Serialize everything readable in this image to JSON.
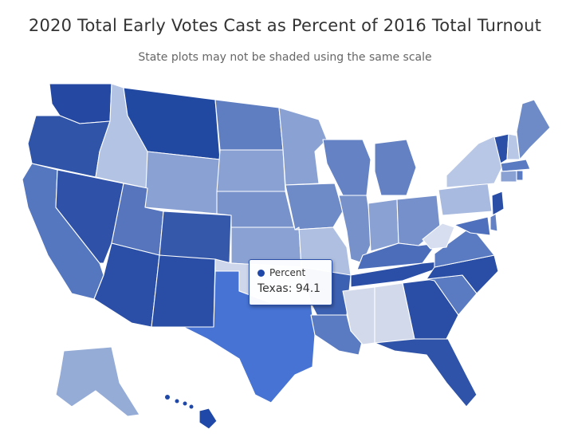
{
  "title": "2020 Total Early Votes Cast as Percent of 2016 Total Turnout",
  "subtitle": "State plots may not be shaded using the same scale",
  "tooltip": {
    "series_name": "Percent",
    "state": "Texas",
    "separator": ": ",
    "value": "94.1",
    "marker_color": "#1f48a8"
  },
  "colors": {
    "background": "#ffffff",
    "state_border": "#ffffff",
    "texas_highlight": "#4673d4"
  },
  "states": [
    {
      "id": "WA",
      "name": "Washington",
      "color": "#2549a3"
    },
    {
      "id": "OR",
      "name": "Oregon",
      "color": "#2f54a8"
    },
    {
      "id": "CA",
      "name": "California",
      "color": "#5577bf"
    },
    {
      "id": "ID",
      "name": "Idaho",
      "color": "#b3c3e3"
    },
    {
      "id": "NV",
      "name": "Nevada",
      "color": "#2f52a8"
    },
    {
      "id": "MT",
      "name": "Montana",
      "color": "#2249a1"
    },
    {
      "id": "WY",
      "name": "Wyoming",
      "color": "#8aa1d3"
    },
    {
      "id": "UT",
      "name": "Utah",
      "color": "#5675bd"
    },
    {
      "id": "AZ",
      "name": "Arizona",
      "color": "#2b4fa6"
    },
    {
      "id": "CO",
      "name": "Colorado",
      "color": "#3658ab"
    },
    {
      "id": "NM",
      "name": "New Mexico",
      "color": "#2a4ea5"
    },
    {
      "id": "ND",
      "name": "North Dakota",
      "color": "#5f7ec2"
    },
    {
      "id": "SD",
      "name": "South Dakota",
      "color": "#8aa1d3"
    },
    {
      "id": "NE",
      "name": "Nebraska",
      "color": "#7893cc"
    },
    {
      "id": "KS",
      "name": "Kansas",
      "color": "#8aa1d3"
    },
    {
      "id": "OK",
      "name": "Oklahoma",
      "color": "#cdd6ea"
    },
    {
      "id": "TX",
      "name": "Texas",
      "color": "#4673d4"
    },
    {
      "id": "MN",
      "name": "Minnesota",
      "color": "#8aa1d3"
    },
    {
      "id": "IA",
      "name": "Iowa",
      "color": "#6e8bc8"
    },
    {
      "id": "MO",
      "name": "Missouri",
      "color": "#aebfe1"
    },
    {
      "id": "AR",
      "name": "Arkansas",
      "color": "#3d61b2"
    },
    {
      "id": "LA",
      "name": "Louisiana",
      "color": "#5a7bc1"
    },
    {
      "id": "WI",
      "name": "Wisconsin",
      "color": "#6583c4"
    },
    {
      "id": "IL",
      "name": "Illinois",
      "color": "#7791cb"
    },
    {
      "id": "MI",
      "name": "Michigan",
      "color": "#6482c3"
    },
    {
      "id": "IN",
      "name": "Indiana",
      "color": "#8aa1d3"
    },
    {
      "id": "OH",
      "name": "Ohio",
      "color": "#7590cb"
    },
    {
      "id": "KY",
      "name": "Kentucky",
      "color": "#4c6dba"
    },
    {
      "id": "TN",
      "name": "Tennessee",
      "color": "#2b4fa6"
    },
    {
      "id": "MS",
      "name": "Mississippi",
      "color": "#d2d9ea"
    },
    {
      "id": "AL",
      "name": "Alabama",
      "color": "#d2d9ea"
    },
    {
      "id": "GA",
      "name": "Georgia",
      "color": "#2a4ea5"
    },
    {
      "id": "FL",
      "name": "Florida",
      "color": "#2f53a8"
    },
    {
      "id": "SC",
      "name": "South Carolina",
      "color": "#5a7bc1"
    },
    {
      "id": "NC",
      "name": "North Carolina",
      "color": "#2a4ea5"
    },
    {
      "id": "VA",
      "name": "Virginia",
      "color": "#5a7bc1"
    },
    {
      "id": "WV",
      "name": "West Virginia",
      "color": "#d6deef"
    },
    {
      "id": "PA",
      "name": "Pennsylvania",
      "color": "#a8badf"
    },
    {
      "id": "NY",
      "name": "New York",
      "color": "#b8c7e6"
    },
    {
      "id": "VT",
      "name": "Vermont",
      "color": "#2b4fa6"
    },
    {
      "id": "NH",
      "name": "New Hampshire",
      "color": "#b8c7e6"
    },
    {
      "id": "ME",
      "name": "Maine",
      "color": "#6e8bc8"
    },
    {
      "id": "MA",
      "name": "Massachusetts",
      "color": "#5a7bc1"
    },
    {
      "id": "CT",
      "name": "Connecticut",
      "color": "#8aa1d3"
    },
    {
      "id": "RI",
      "name": "Rhode Island",
      "color": "#5a7bc1"
    },
    {
      "id": "NJ",
      "name": "New Jersey",
      "color": "#2a4ea5"
    },
    {
      "id": "DE",
      "name": "Delaware",
      "color": "#6482c3"
    },
    {
      "id": "MD",
      "name": "Maryland",
      "color": "#4f70bc"
    },
    {
      "id": "AK",
      "name": "Alaska",
      "color": "#95acd7"
    },
    {
      "id": "HI",
      "name": "Hawaii",
      "color": "#1f48a8"
    }
  ]
}
